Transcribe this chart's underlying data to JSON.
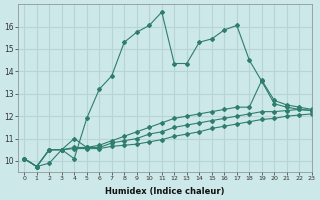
{
  "xlabel": "Humidex (Indice chaleur)",
  "background_color": "#cce8e8",
  "grid_color": "#b8d4d4",
  "line_color": "#2e7d6e",
  "xlim": [
    -0.5,
    23
  ],
  "ylim": [
    9.5,
    17.0
  ],
  "yticks": [
    10,
    11,
    12,
    13,
    14,
    15,
    16
  ],
  "xticks": [
    0,
    1,
    2,
    3,
    4,
    5,
    6,
    7,
    8,
    9,
    10,
    11,
    12,
    13,
    14,
    15,
    16,
    17,
    18,
    19,
    20,
    21,
    22,
    23
  ],
  "series1_x": [
    0,
    1,
    2,
    3,
    4,
    5,
    6,
    7,
    8,
    9,
    10,
    11,
    12,
    13,
    14,
    15,
    16,
    17,
    18,
    19,
    20,
    21,
    22,
    23
  ],
  "series1_y": [
    10.1,
    9.75,
    9.9,
    10.5,
    10.1,
    11.9,
    13.2,
    13.8,
    15.3,
    15.75,
    16.05,
    16.65,
    14.35,
    14.35,
    15.3,
    15.45,
    15.85,
    16.05,
    14.5,
    13.55,
    12.55,
    12.4,
    12.3,
    12.25
  ],
  "series2_x": [
    0,
    1,
    2,
    3,
    4,
    5,
    6,
    7,
    8,
    9,
    10,
    11,
    12,
    13,
    14,
    15,
    16,
    17,
    18,
    19,
    20,
    21,
    22,
    23
  ],
  "series2_y": [
    10.1,
    9.75,
    10.5,
    10.5,
    11.0,
    10.6,
    10.7,
    10.9,
    11.1,
    11.3,
    11.5,
    11.7,
    11.9,
    12.0,
    12.1,
    12.2,
    12.3,
    12.4,
    12.4,
    13.6,
    12.7,
    12.5,
    12.4,
    12.3
  ],
  "series3_x": [
    0,
    1,
    2,
    3,
    4,
    5,
    6,
    7,
    8,
    9,
    10,
    11,
    12,
    13,
    14,
    15,
    16,
    17,
    18,
    19,
    20,
    21,
    22,
    23
  ],
  "series3_y": [
    10.1,
    9.75,
    10.5,
    10.5,
    10.6,
    10.6,
    10.6,
    10.8,
    10.9,
    11.0,
    11.2,
    11.3,
    11.5,
    11.6,
    11.7,
    11.8,
    11.9,
    12.0,
    12.1,
    12.2,
    12.2,
    12.25,
    12.3,
    12.25
  ],
  "series4_x": [
    0,
    1,
    2,
    3,
    4,
    5,
    6,
    7,
    8,
    9,
    10,
    11,
    12,
    13,
    14,
    15,
    16,
    17,
    18,
    19,
    20,
    21,
    22,
    23
  ],
  "series4_y": [
    10.1,
    9.75,
    10.5,
    10.5,
    10.55,
    10.55,
    10.55,
    10.65,
    10.7,
    10.75,
    10.85,
    10.95,
    11.1,
    11.2,
    11.3,
    11.45,
    11.55,
    11.65,
    11.75,
    11.85,
    11.9,
    12.0,
    12.05,
    12.1
  ]
}
